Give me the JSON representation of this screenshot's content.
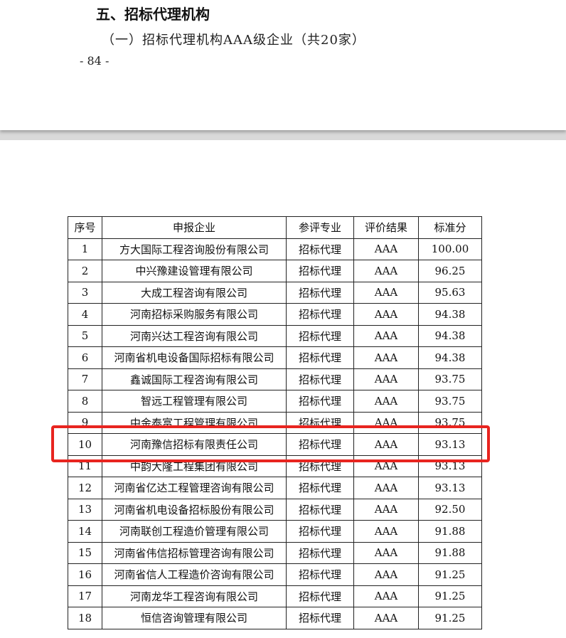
{
  "page1": {
    "section_title": "五、招标代理机构",
    "subsection_title": "（一）招标代理机构AAA级企业（共20家）",
    "page_number": "- 84 -"
  },
  "table": {
    "headers": [
      "序号",
      "申报企业",
      "参评专业",
      "评价结果",
      "标准分"
    ],
    "rows": [
      [
        "1",
        "方大国际工程咨询股份有限公司",
        "招标代理",
        "AAA",
        "100.00"
      ],
      [
        "2",
        "中兴豫建设管理有限公司",
        "招标代理",
        "AAA",
        "96.25"
      ],
      [
        "3",
        "大成工程咨询有限公司",
        "招标代理",
        "AAA",
        "95.63"
      ],
      [
        "4",
        "河南招标采购服务有限公司",
        "招标代理",
        "AAA",
        "94.38"
      ],
      [
        "5",
        "河南兴达工程咨询有限公司",
        "招标代理",
        "AAA",
        "94.38"
      ],
      [
        "6",
        "河南省机电设备国际招标有限公司",
        "招标代理",
        "AAA",
        "94.38"
      ],
      [
        "7",
        "鑫诚国际工程咨询有限公司",
        "招标代理",
        "AAA",
        "93.75"
      ],
      [
        "8",
        "智远工程管理有限公司",
        "招标代理",
        "AAA",
        "93.75"
      ],
      [
        "9",
        "中金泰富工程管理有限公司",
        "招标代理",
        "AAA",
        "93.75"
      ],
      [
        "10",
        "河南豫信招标有限责任公司",
        "招标代理",
        "AAA",
        "93.13"
      ],
      [
        "11",
        "中韵大隆工程集团有限公司",
        "招标代理",
        "AAA",
        "93.13"
      ],
      [
        "12",
        "河南省亿达工程管理咨询有限公司",
        "招标代理",
        "AAA",
        "93.13"
      ],
      [
        "13",
        "河南省机电设备招标股份有限公司",
        "招标代理",
        "AAA",
        "92.50"
      ],
      [
        "14",
        "河南联创工程造价管理有限公司",
        "招标代理",
        "AAA",
        "91.88"
      ],
      [
        "15",
        "河南省伟信招标管理咨询有限公司",
        "招标代理",
        "AAA",
        "91.88"
      ],
      [
        "16",
        "河南省信人工程造价咨询有限公司",
        "招标代理",
        "AAA",
        "91.25"
      ],
      [
        "17",
        "河南龙华工程咨询有限公司",
        "招标代理",
        "AAA",
        "91.25"
      ],
      [
        "18",
        "恒信咨询管理有限公司",
        "招标代理",
        "AAA",
        "91.25"
      ]
    ],
    "highlighted_row": "10",
    "highlight_color": "#e8241f"
  }
}
